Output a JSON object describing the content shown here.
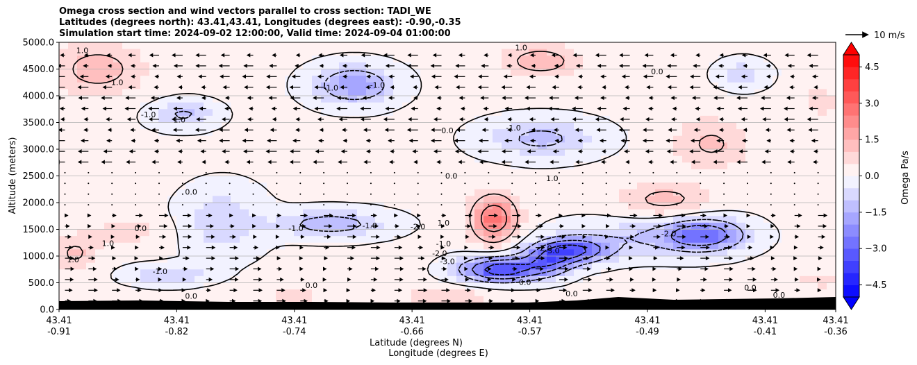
{
  "chart_data": {
    "type": "heatmap",
    "title_lines": [
      "Omega cross section and wind vectors parallel to cross section: TADI_WE",
      "Latitudes (degrees north): 43.41,43.41, Longitudes (degrees east): -0.90,-0.35",
      "Simulation start time: 2024-09-02 12:00:00, Valid time: 2024-09-04 01:00:00"
    ],
    "ylabel": "Altitude (meters)",
    "xlabel_lines": [
      "Latitude (degrees N)",
      "Longitude (degrees E)"
    ],
    "ylim": [
      0,
      5000
    ],
    "yticks": [
      0,
      500,
      1000,
      1500,
      2000,
      2500,
      3000,
      3500,
      4000,
      4500,
      5000
    ],
    "ytick_labels": [
      "0.0",
      "500.0",
      "1000.0",
      "1500.0",
      "2000.0",
      "2500.0",
      "3000.0",
      "3500.0",
      "4000.0",
      "4500.0",
      "5000.0"
    ],
    "xticks": [
      {
        "lat": "43.41",
        "lon": "-0.91"
      },
      {
        "lat": "43.41",
        "lon": "-0.82"
      },
      {
        "lat": "43.41",
        "lon": "-0.74"
      },
      {
        "lat": "43.41",
        "lon": "-0.66"
      },
      {
        "lat": "43.41",
        "lon": "-0.57"
      },
      {
        "lat": "43.41",
        "lon": "-0.49"
      },
      {
        "lat": "43.41",
        "lon": "-0.41"
      },
      {
        "lat": "43.41",
        "lon": "-0.36"
      }
    ],
    "colorbar": {
      "label": "Omega Pa/s",
      "range": [
        -5.0,
        5.0
      ],
      "step": 0.5,
      "ticks": [
        -4.5,
        -3.0,
        -1.5,
        0.0,
        1.5,
        3.0,
        4.5
      ],
      "tick_labels": [
        "−4.5",
        "−3.0",
        "−1.5",
        "0.0",
        "1.5",
        "3.0",
        "4.5"
      ],
      "extend": "both",
      "colormap": "bwr"
    },
    "quiver_key": {
      "label": "10 m/s",
      "speed": 10
    },
    "contour_levels": [
      -3.0,
      -2.0,
      -1.0,
      0.0,
      1.0,
      2.0
    ],
    "contour_labels": [
      {
        "text": "1.0",
        "x": 0.03,
        "y": 4800
      },
      {
        "text": "1.0",
        "x": 0.075,
        "y": 4200
      },
      {
        "text": "-1.0",
        "x": 0.115,
        "y": 3600
      },
      {
        "text": "1.0",
        "x": 0.155,
        "y": 3500
      },
      {
        "text": "-1.0",
        "x": 0.35,
        "y": 4100
      },
      {
        "text": "-1.0",
        "x": 0.41,
        "y": 4150
      },
      {
        "text": "1.0",
        "x": 0.595,
        "y": 4850
      },
      {
        "text": "0.0",
        "x": 0.77,
        "y": 4400
      },
      {
        "text": "0.0",
        "x": 0.5,
        "y": 3300
      },
      {
        "text": "-1.0",
        "x": 0.585,
        "y": 3350
      },
      {
        "text": "0.0",
        "x": 0.505,
        "y": 2450
      },
      {
        "text": "1.0",
        "x": 0.635,
        "y": 2400
      },
      {
        "text": "0.0",
        "x": 0.17,
        "y": 2150
      },
      {
        "text": "0.0",
        "x": 0.105,
        "y": 1470
      },
      {
        "text": "1.0",
        "x": 0.063,
        "y": 1190
      },
      {
        "text": "1.0",
        "x": 0.018,
        "y": 880
      },
      {
        "text": "-1.0",
        "x": 0.305,
        "y": 1470
      },
      {
        "text": "-1.0",
        "x": 0.4,
        "y": 1520
      },
      {
        "text": "-2.0",
        "x": 0.462,
        "y": 1500
      },
      {
        "text": "1.0",
        "x": 0.495,
        "y": 1570
      },
      {
        "text": "-1.0",
        "x": 0.495,
        "y": 1180
      },
      {
        "text": "-2.0",
        "x": 0.49,
        "y": 1000
      },
      {
        "text": "-3.0",
        "x": 0.5,
        "y": 850
      },
      {
        "text": "-2.0",
        "x": 0.625,
        "y": 1100
      },
      {
        "text": "-3.0",
        "x": 0.635,
        "y": 1050
      },
      {
        "text": "-2.0",
        "x": 0.785,
        "y": 1370
      },
      {
        "text": "-1.0",
        "x": 0.13,
        "y": 660
      },
      {
        "text": "0.0",
        "x": 0.17,
        "y": 200
      },
      {
        "text": "0.0",
        "x": 0.325,
        "y": 400
      },
      {
        "text": "0.0",
        "x": 0.6,
        "y": 460
      },
      {
        "text": "0.0",
        "x": 0.66,
        "y": 250
      },
      {
        "text": "0.0",
        "x": 0.89,
        "y": 360
      },
      {
        "text": "0.0",
        "x": 0.927,
        "y": 220
      }
    ]
  }
}
